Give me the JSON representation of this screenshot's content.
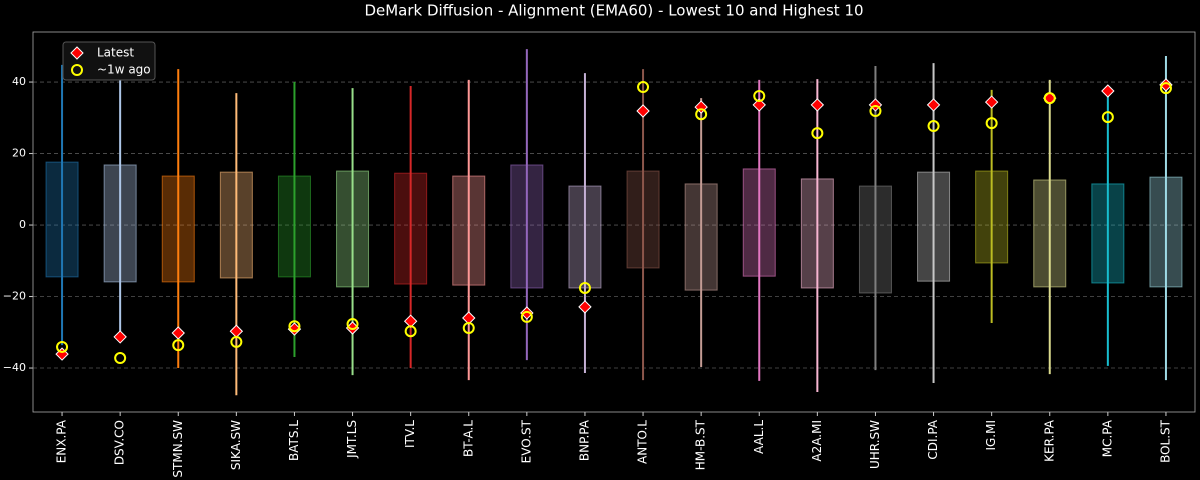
{
  "chart_data": {
    "type": "range",
    "title": "DeMark Diffusion - Alignment (EMA60) - Lowest 10 and Highest 10",
    "categories": [
      "ENX.PA",
      "DSV.CO",
      "STMN.SW",
      "SIKA.SW",
      "BATS.L",
      "JMT.LS",
      "ITV.L",
      "BT-A.L",
      "EVO.ST",
      "BNP.PA",
      "ANTO.L",
      "HM-B.ST",
      "AAL.L",
      "A2A.MI",
      "UHR.SW",
      "CDI.PA",
      "IG.MI",
      "KER.PA",
      "MC.PA",
      "BOL.ST"
    ],
    "colors": [
      "#1f77b4",
      "#aec7e8",
      "#ff7f0e",
      "#ffbb78",
      "#2ca02c",
      "#98df8a",
      "#d62728",
      "#ff9896",
      "#9467bd",
      "#c5b0d5",
      "#8c564b",
      "#c49c94",
      "#e377c2",
      "#f7b6d2",
      "#7f7f7f",
      "#c7c7c7",
      "#bcbd22",
      "#dbdb8d",
      "#17becf",
      "#9edae5"
    ],
    "ranges": {
      "whisker_low": [
        -33.6,
        -30.8,
        -40,
        -47.6,
        -36.9,
        -42,
        -40,
        -43.4,
        -37.8,
        -41.4,
        -43.4,
        -39.7,
        -43.6,
        -46.7,
        -40.6,
        -44.2,
        -27.4,
        -41.7,
        -39.4,
        -43.4
      ],
      "whisker_high": [
        44.8,
        44.8,
        43.6,
        36.9,
        40,
        38.3,
        38.9,
        40.6,
        49.2,
        42.5,
        43.6,
        35.5,
        40.6,
        40.8,
        44.5,
        45.3,
        37.8,
        40.6,
        37.8,
        47.3
      ],
      "box_low": [
        -14.5,
        -15.9,
        -15.9,
        -14.8,
        -14.5,
        -17.3,
        -16.5,
        -16.8,
        -17.6,
        -17.6,
        -12,
        -18.2,
        -14.3,
        -17.6,
        -19,
        -15.7,
        -10.6,
        -17.3,
        -16.2,
        -17.3
      ],
      "box_high": [
        17.6,
        16.8,
        13.7,
        14.8,
        13.7,
        15.1,
        14.5,
        13.7,
        16.8,
        10.9,
        15.1,
        11.5,
        15.7,
        12.9,
        10.9,
        14.8,
        15.1,
        12.6,
        11.5,
        13.4
      ]
    },
    "series": [
      {
        "name": "Latest",
        "color": "#ff0000",
        "marker": "diamond",
        "values": [
          -36.1,
          -31.3,
          -30.2,
          -29.7,
          -29.1,
          -28.8,
          -26.9,
          -26,
          -24.6,
          -22.9,
          31.9,
          33,
          33.6,
          33.6,
          33.6,
          33.6,
          34.4,
          35.5,
          37.5,
          39.2
        ]
      },
      {
        "name": "~1w ago",
        "color": "#ffff00",
        "marker": "circle",
        "values": [
          -34.1,
          -37.2,
          -33.6,
          -32.7,
          -28.3,
          -27.7,
          -29.7,
          -28.8,
          -25.7,
          -17.6,
          38.6,
          31,
          36.1,
          25.7,
          31.9,
          27.7,
          28.5,
          35.5,
          30.2,
          38.3
        ]
      }
    ],
    "ylim": [
      -52.3,
      54
    ],
    "yticks": [
      {
        "value": -40,
        "label": "−40"
      },
      {
        "value": -20,
        "label": "−20"
      },
      0,
      20,
      40
    ],
    "grid": true,
    "legend": "upper left"
  }
}
